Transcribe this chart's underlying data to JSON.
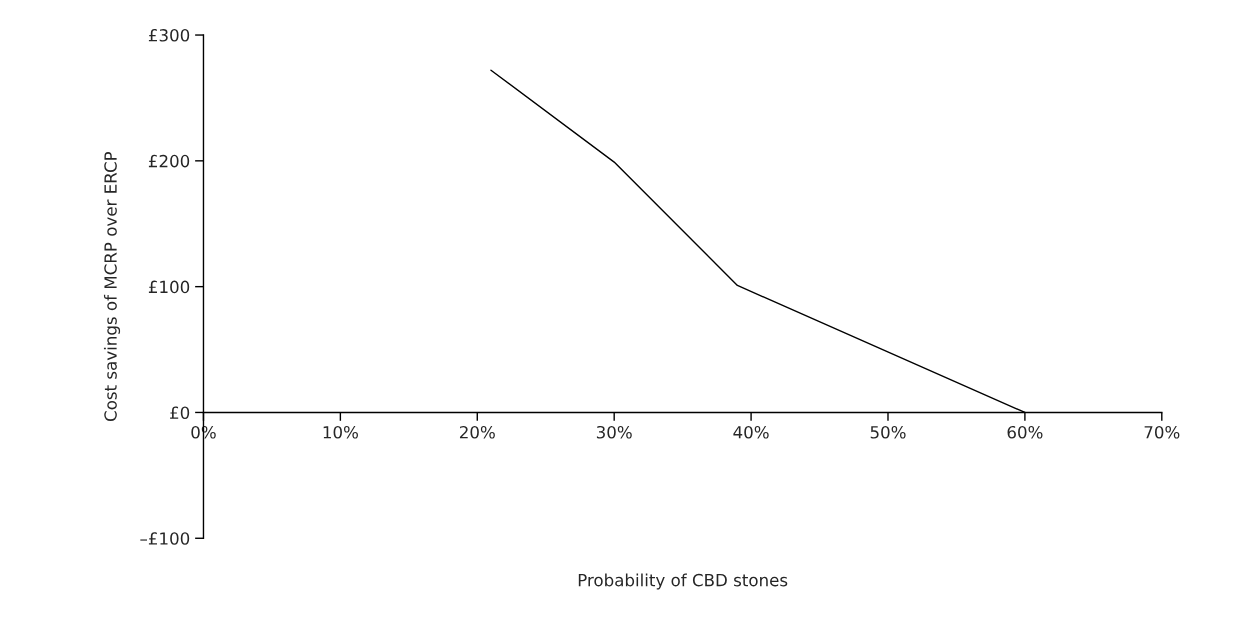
{
  "chart_data": {
    "type": "line",
    "xlabel": "Probability of CBD stones",
    "ylabel": "Cost savings of MCRP over ERCP",
    "x": [
      21,
      30,
      39,
      60
    ],
    "series": [
      {
        "color": "#000000",
        "values": [
          272,
          199,
          101,
          0
        ]
      }
    ],
    "xlim": [
      0,
      70
    ],
    "ylim": [
      -100,
      300
    ],
    "xticks": [
      {
        "value": 0,
        "label": "0%"
      },
      {
        "value": 10,
        "label": "10%"
      },
      {
        "value": 20,
        "label": "20%"
      },
      {
        "value": 30,
        "label": "30%"
      },
      {
        "value": 40,
        "label": "40%"
      },
      {
        "value": 50,
        "label": "50%"
      },
      {
        "value": 60,
        "label": "60%"
      },
      {
        "value": 70,
        "label": "70%"
      }
    ],
    "yticks": [
      {
        "value": -100,
        "label": "–£100"
      },
      {
        "value": 0,
        "label": "£0"
      },
      {
        "value": 100,
        "label": "£100"
      },
      {
        "value": 200,
        "label": "£200"
      },
      {
        "value": 300,
        "label": "£300"
      }
    ],
    "grid": false,
    "marker": "none",
    "line_style": "solid"
  }
}
